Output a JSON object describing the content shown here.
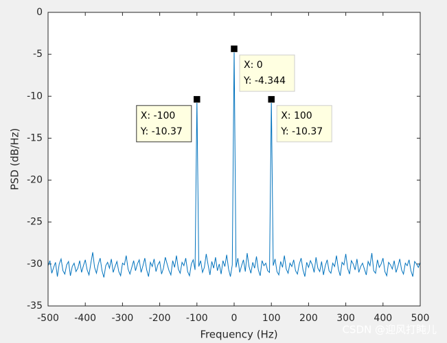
{
  "chart_data": {
    "type": "line",
    "xlabel": "Frequency (Hz)",
    "ylabel": "PSD (dB/Hz)",
    "xlim": [
      -500,
      500
    ],
    "ylim": [
      -35,
      0
    ],
    "xticks": [
      -500,
      -400,
      -300,
      -200,
      -100,
      0,
      100,
      200,
      300,
      400,
      500
    ],
    "yticks": [
      0,
      -5,
      -10,
      -15,
      -20,
      -25,
      -30,
      -35
    ],
    "grid": false,
    "x": [
      -500,
      -495,
      -490,
      -485,
      -480,
      -475,
      -470,
      -465,
      -460,
      -455,
      -450,
      -445,
      -440,
      -435,
      -430,
      -425,
      -420,
      -415,
      -410,
      -405,
      -400,
      -395,
      -390,
      -385,
      -380,
      -375,
      -370,
      -365,
      -360,
      -355,
      -350,
      -345,
      -340,
      -335,
      -330,
      -325,
      -320,
      -315,
      -310,
      -305,
      -300,
      -295,
      -290,
      -285,
      -280,
      -275,
      -270,
      -265,
      -260,
      -255,
      -250,
      -245,
      -240,
      -235,
      -230,
      -225,
      -220,
      -215,
      -210,
      -205,
      -200,
      -195,
      -190,
      -185,
      -180,
      -175,
      -170,
      -165,
      -160,
      -155,
      -150,
      -145,
      -140,
      -135,
      -130,
      -125,
      -120,
      -115,
      -110,
      -105,
      -100,
      -95,
      -90,
      -85,
      -80,
      -75,
      -70,
      -65,
      -60,
      -55,
      -50,
      -45,
      -40,
      -35,
      -30,
      -25,
      -20,
      -15,
      -10,
      -5,
      0,
      5,
      10,
      15,
      20,
      25,
      30,
      35,
      40,
      45,
      50,
      55,
      60,
      65,
      70,
      75,
      80,
      85,
      90,
      95,
      100,
      105,
      110,
      115,
      120,
      125,
      130,
      135,
      140,
      145,
      150,
      155,
      160,
      165,
      170,
      175,
      180,
      185,
      190,
      195,
      200,
      205,
      210,
      215,
      220,
      225,
      230,
      235,
      240,
      245,
      250,
      255,
      260,
      265,
      270,
      275,
      280,
      285,
      290,
      295,
      300,
      305,
      310,
      315,
      320,
      325,
      330,
      335,
      340,
      345,
      350,
      355,
      360,
      365,
      370,
      375,
      380,
      385,
      390,
      395,
      400,
      405,
      410,
      415,
      420,
      425,
      430,
      435,
      440,
      445,
      450,
      455,
      460,
      465,
      470,
      475,
      480,
      485,
      490,
      495,
      500
    ],
    "series": [
      {
        "color": "#0072bd",
        "values": [
          -30.2,
          -29.6,
          -31.1,
          -30.4,
          -29.8,
          -31.5,
          -30.0,
          -29.4,
          -30.8,
          -31.2,
          -30.1,
          -29.7,
          -31.4,
          -30.3,
          -29.9,
          -30.9,
          -30.5,
          -29.6,
          -31.0,
          -30.2,
          -29.5,
          -30.7,
          -31.3,
          -29.9,
          -28.6,
          -30.4,
          -31.1,
          -30.0,
          -29.3,
          -30.8,
          -31.6,
          -30.2,
          -29.8,
          -30.5,
          -29.4,
          -31.0,
          -30.3,
          -29.7,
          -30.9,
          -31.4,
          -29.9,
          -30.1,
          -29.0,
          -30.6,
          -31.2,
          -30.4,
          -29.6,
          -30.8,
          -30.0,
          -29.5,
          -31.0,
          -30.2,
          -29.3,
          -30.7,
          -31.5,
          -29.8,
          -30.3,
          -29.4,
          -30.9,
          -30.1,
          -29.7,
          -31.2,
          -30.5,
          -29.2,
          -30.0,
          -30.8,
          -31.3,
          -29.6,
          -30.4,
          -29.0,
          -30.6,
          -31.1,
          -29.8,
          -30.2,
          -29.3,
          -30.9,
          -31.4,
          -30.0,
          -29.5,
          -30.7,
          -10.37,
          -30.3,
          -29.6,
          -31.0,
          -30.4,
          -28.8,
          -30.1,
          -31.3,
          -29.7,
          -30.5,
          -29.2,
          -30.8,
          -30.0,
          -31.2,
          -29.6,
          -30.3,
          -28.9,
          -30.6,
          -31.5,
          -30.1,
          -4.344,
          -30.4,
          -29.3,
          -31.0,
          -30.2,
          -29.5,
          -30.9,
          -28.7,
          -30.3,
          -31.1,
          -29.8,
          -30.5,
          -29.1,
          -30.7,
          -31.4,
          -29.6,
          -30.2,
          -29.9,
          -30.8,
          -31.0,
          -10.37,
          -30.2,
          -29.4,
          -30.9,
          -31.3,
          -29.7,
          -30.4,
          -29.0,
          -30.6,
          -31.1,
          -29.9,
          -30.3,
          -29.5,
          -30.8,
          -31.2,
          -30.0,
          -29.3,
          -30.7,
          -31.5,
          -29.8,
          -30.4,
          -29.6,
          -30.1,
          -31.0,
          -29.2,
          -30.5,
          -30.9,
          -29.7,
          -31.3,
          -30.2,
          -29.5,
          -30.8,
          -31.1,
          -29.9,
          -30.3,
          -29.0,
          -30.6,
          -31.4,
          -29.8,
          -30.1,
          -28.8,
          -30.5,
          -31.2,
          -29.6,
          -30.0,
          -30.7,
          -29.4,
          -31.0,
          -30.3,
          -29.9,
          -30.6,
          -31.3,
          -29.7,
          -30.2,
          -28.7,
          -30.8,
          -31.1,
          -29.5,
          -30.4,
          -30.0,
          -29.3,
          -30.9,
          -31.4,
          -29.8,
          -30.1,
          -30.6,
          -29.6,
          -31.0,
          -30.3,
          -29.4,
          -30.7,
          -31.2,
          -29.9,
          -30.2,
          -29.5,
          -30.8,
          -31.5,
          -29.7,
          -30.0,
          -30.4,
          -29.8
        ]
      }
    ],
    "annotations": [
      {
        "x": -100,
        "y": -10.37,
        "lines": [
          "X: -100",
          "Y: -10.37"
        ]
      },
      {
        "x": 0,
        "y": -4.344,
        "lines": [
          "X: 0",
          "Y: -4.344"
        ]
      },
      {
        "x": 100,
        "y": -10.37,
        "lines": [
          "X: 100",
          "Y: -10.37"
        ]
      }
    ],
    "watermark": "CSDN @迎风打盹儿"
  }
}
